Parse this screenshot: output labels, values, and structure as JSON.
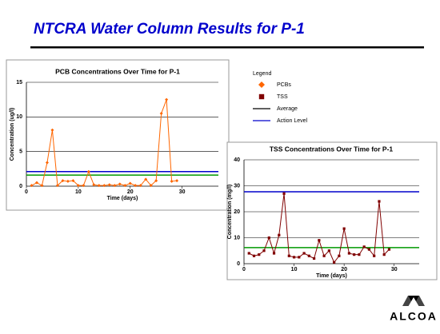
{
  "title": "NTCRA Water Column Results for P-1",
  "logo": "ALCOA",
  "legend": {
    "title": "Legend",
    "items": [
      {
        "name": "PCBs",
        "color": "#ff6600",
        "marker": "diamond"
      },
      {
        "name": "TSS",
        "color": "#800000",
        "marker": "square"
      },
      {
        "name": "Average",
        "color": "#000000",
        "marker": "line"
      },
      {
        "name": "Action Level",
        "color": "#0000cc",
        "marker": "line"
      }
    ]
  },
  "chart_data": [
    {
      "type": "line",
      "title": "PCB Concentrations Over Time for P-1",
      "x_label": "Time (days)",
      "y_label": "Concentration (ug/l)",
      "xlim": [
        0,
        37
      ],
      "xticks": [
        0,
        10,
        20,
        30
      ],
      "ylim": [
        0,
        15
      ],
      "yticks": [
        0,
        5,
        10,
        15
      ],
      "grid": true,
      "x": [
        1,
        2,
        3,
        4,
        5,
        6,
        7,
        8,
        9,
        10,
        11,
        12,
        13,
        14,
        15,
        16,
        17,
        18,
        19,
        20,
        21,
        22,
        23,
        24,
        25,
        26,
        27,
        28,
        29
      ],
      "series": [
        {
          "color": "#ff6600",
          "marker": "diamond",
          "values": [
            0.1,
            0.5,
            0.1,
            3.4,
            8.1,
            0.1,
            0.8,
            0.7,
            0.8,
            0.1,
            0.1,
            2.1,
            0.2,
            0.1,
            0.1,
            0.2,
            0.1,
            0.3,
            0.1,
            0.4,
            0.1,
            0.1,
            1.0,
            0.1,
            0.8,
            10.5,
            12.5,
            0.7,
            0.8
          ]
        }
      ],
      "hlines": [
        {
          "value": 1.6,
          "color": "#009900"
        },
        {
          "value": 2.1,
          "color": "#0000cc"
        }
      ]
    },
    {
      "type": "line",
      "title": "TSS Concentrations Over Time for P-1",
      "x_label": "Time (days)",
      "y_label": "Concentration (mg/l)",
      "xlim": [
        0,
        35
      ],
      "xticks": [
        0,
        10,
        20,
        30
      ],
      "ylim": [
        0,
        40
      ],
      "yticks": [
        0,
        10,
        20,
        30,
        40
      ],
      "grid": true,
      "x": [
        1,
        2,
        3,
        4,
        5,
        6,
        7,
        8,
        9,
        10,
        11,
        12,
        13,
        14,
        15,
        16,
        17,
        18,
        19,
        20,
        21,
        22,
        23,
        24,
        25,
        26,
        27,
        28,
        29
      ],
      "series": [
        {
          "color": "#800000",
          "marker": "square",
          "values": [
            4,
            3,
            3.5,
            5,
            10,
            4,
            11,
            27,
            3,
            2.5,
            2.5,
            4,
            3,
            2,
            9,
            3,
            5,
            0.5,
            3,
            13.5,
            4,
            3.5,
            3.5,
            6.5,
            5.5,
            3,
            24,
            3.5,
            5.5
          ]
        }
      ],
      "hlines": [
        {
          "value": 6.2,
          "color": "#009900"
        },
        {
          "value": 27.7,
          "color": "#0000cc"
        }
      ]
    }
  ]
}
